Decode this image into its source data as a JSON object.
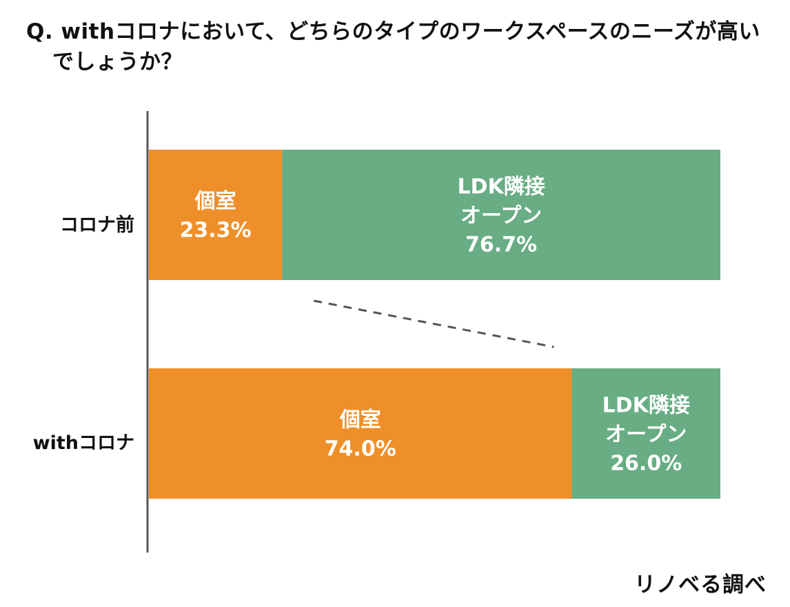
{
  "title": {
    "line1": "Q. withコロナにおいて、どちらのタイプのワークスペースのニーズが高い",
    "line2": "でしょうか？"
  },
  "source": "リノベる調べ",
  "colors": {
    "private_room": "#ef8f2a",
    "ldk_open": "#68ad83",
    "axis": "#555555",
    "connector": "#555555"
  },
  "chart_data": {
    "type": "bar",
    "orientation": "horizontal",
    "stacked": true,
    "percent": true,
    "categories": [
      "コロナ前",
      "withコロナ"
    ],
    "series": [
      {
        "name": "個室",
        "values": [
          23.3,
          74.0
        ]
      },
      {
        "name": "LDK隣接\nオープン",
        "values": [
          76.7,
          26.0
        ]
      }
    ],
    "xlim": [
      0,
      100
    ],
    "title": "Q. withコロナにおいて、どちらのタイプのワークスペースのニーズが高いでしょうか？",
    "xlabel": "",
    "ylabel": "",
    "legend": "none",
    "grid": false,
    "data_labels": [
      [
        "個室\n23.3%",
        "LDK隣接\nオープン\n76.7%"
      ],
      [
        "個室\n74.0%",
        "LDK隣接\nオープン\n26.0%"
      ]
    ]
  }
}
